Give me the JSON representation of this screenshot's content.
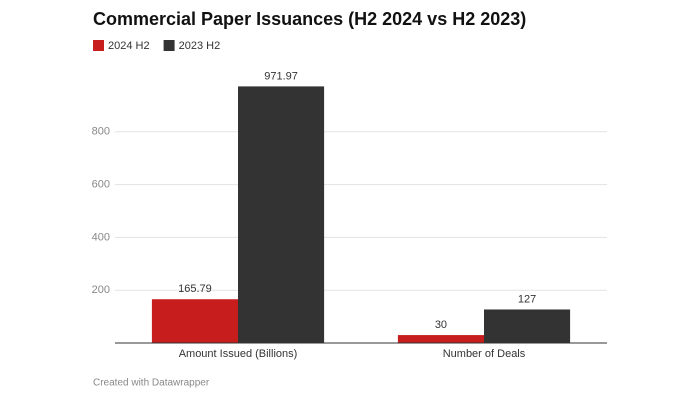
{
  "chart_data": {
    "type": "bar",
    "title": "Commercial Paper Issuances (H2 2024 vs H2 2023)",
    "categories": [
      "Amount Issued (Billions)",
      "Number of Deals"
    ],
    "series": [
      {
        "name": "2024 H2",
        "color": "#c71e1d",
        "values": [
          165.79,
          30
        ]
      },
      {
        "name": "2023 H2",
        "color": "#333333",
        "values": [
          971.97,
          127
        ]
      }
    ],
    "ylim": [
      0,
      1000
    ],
    "yticks": [
      200,
      400,
      600,
      800
    ],
    "grid": true,
    "credit": "Created with Datawrapper"
  }
}
